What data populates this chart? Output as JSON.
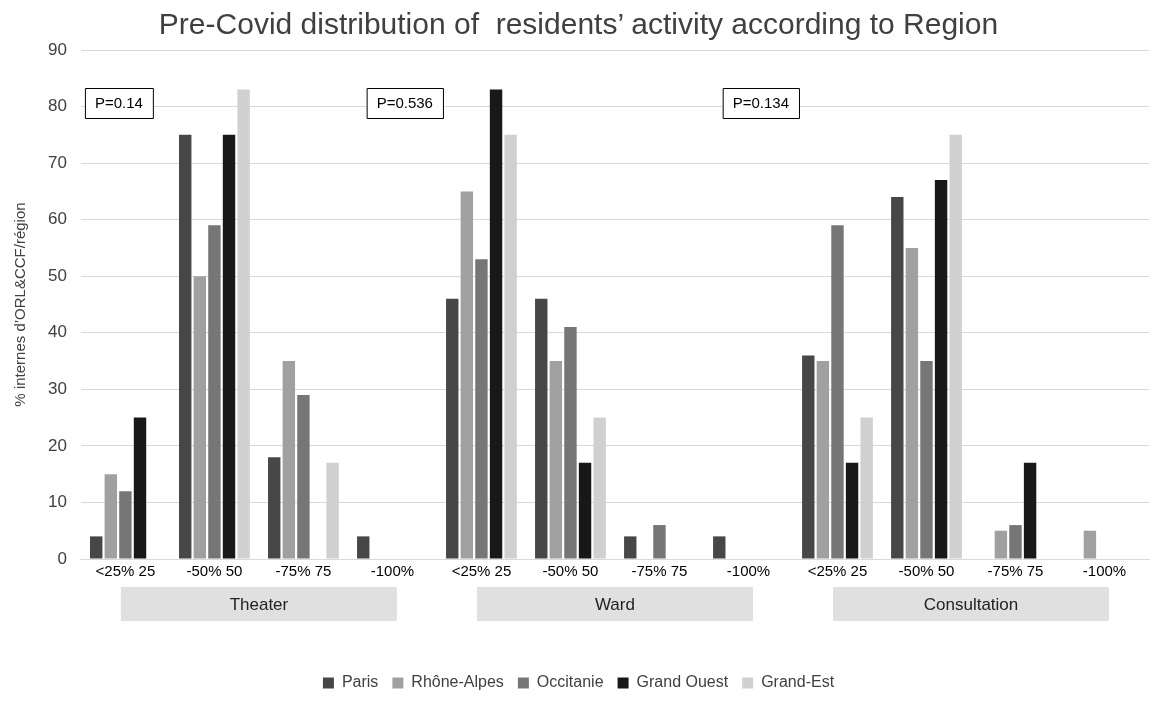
{
  "chart_data": {
    "type": "bar",
    "title": "Pre-Covid distribution of  residents’ activity according to Region",
    "ylabel": "% internes d’ORL&CCF/région",
    "categories": [
      "<25% 25",
      "-50% 50",
      "-75% 75",
      "-100%",
      "<25% 25",
      "-50% 50",
      "-75% 75",
      "-100%",
      "<25% 25",
      "-50% 50",
      "-75% 75",
      "-100%"
    ],
    "series": [
      {
        "name": "Paris",
        "color": "#474747",
        "values": [
          4,
          75,
          18,
          4,
          46,
          46,
          4,
          4,
          36,
          64,
          0,
          0
        ]
      },
      {
        "name": "Rhône-Alpes",
        "color": "#a0a0a0",
        "values": [
          15,
          50,
          35,
          0,
          65,
          35,
          0,
          0,
          35,
          55,
          5,
          5
        ]
      },
      {
        "name": "Occitanie",
        "color": "#767676",
        "values": [
          12,
          59,
          29,
          0,
          53,
          41,
          6,
          0,
          59,
          35,
          6,
          0
        ]
      },
      {
        "name": "Grand Ouest",
        "color": "#181818",
        "values": [
          25,
          75,
          0,
          0,
          83,
          17,
          0,
          0,
          17,
          67,
          17,
          0
        ]
      },
      {
        "name": "Grand-Est",
        "color": "#d0d0d0",
        "values": [
          0,
          83,
          17,
          0,
          75,
          25,
          0,
          0,
          25,
          75,
          0,
          0
        ]
      }
    ],
    "annotations": [
      "P=0.14",
      "P=0.536",
      "P=0.134",
      "Theater",
      "Ward",
      "Consultation"
    ],
    "ylim": [
      0,
      90
    ],
    "yticks": [
      0,
      10,
      20,
      30,
      40,
      50,
      60,
      70,
      80,
      90
    ],
    "grid": "y",
    "legend": "bottom"
  }
}
